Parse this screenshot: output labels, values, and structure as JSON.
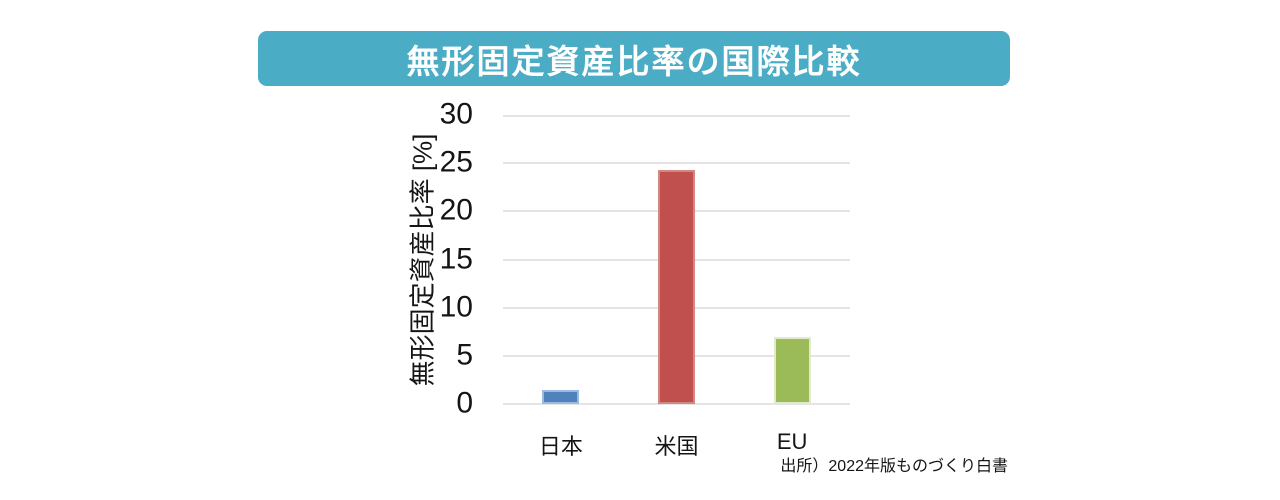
{
  "header": {
    "title": "無形固定資産比率の国際比較",
    "banner_color": "#4BACC6"
  },
  "chart_data": {
    "type": "bar",
    "title": "無形固定資産比率の国際比較",
    "categories": [
      "日本",
      "米国",
      "EU"
    ],
    "values": [
      1.5,
      24.3,
      7.0
    ],
    "unit": "%",
    "xlabel": "",
    "ylabel": "無形固定資産比率 [%]",
    "ylim": [
      0,
      30
    ],
    "yticks": [
      0,
      5,
      10,
      15,
      20,
      25,
      30
    ],
    "grid": "horizontal-only",
    "legend": "none",
    "gridline_color": "#e4e4e4",
    "bar_colors": [
      {
        "fill": "#4F81BD",
        "border": "#9DB9DE"
      },
      {
        "fill": "#C0504D",
        "border": "#D08885"
      },
      {
        "fill": "#9BBB59",
        "border": "#E0EACC"
      }
    ]
  },
  "footer": {
    "source": "出所）2022年版ものづくり白書"
  }
}
